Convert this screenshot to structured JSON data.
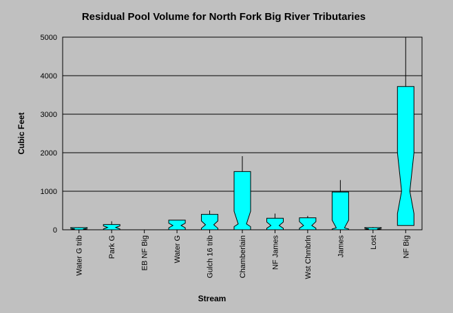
{
  "chart_data": {
    "type": "box",
    "title": "Residual Pool Volume for North Fork Big River Tributaries",
    "xlabel": "Stream",
    "ylabel": "Cubic Feet",
    "ylim": [
      0,
      5000
    ],
    "yticks": [
      0,
      1000,
      2000,
      3000,
      4000,
      5000
    ],
    "grid": true,
    "fill_color": "#00ffff",
    "categories": [
      "Water G trib",
      "Park G",
      "EB NF Big",
      "Water G",
      "Gulch 16 trib",
      "Chamberlain",
      "NF James",
      "Wst Chmbrln",
      "James",
      "Lost",
      "NF Big"
    ],
    "boxes": [
      {
        "q1": 0,
        "median": 20,
        "q3": 55,
        "whisker_high": 65,
        "notch_low": 5,
        "notch_high": 35
      },
      {
        "q1": 0,
        "median": 60,
        "q3": 135,
        "whisker_high": 220,
        "notch_low": 20,
        "notch_high": 100
      },
      null,
      {
        "q1": 0,
        "median": 110,
        "q3": 250,
        "whisker_high": 250,
        "notch_low": 50,
        "notch_high": 170
      },
      {
        "q1": 0,
        "median": 130,
        "q3": 400,
        "whisker_high": 500,
        "notch_low": 40,
        "notch_high": 230
      },
      {
        "q1": 0,
        "median": 150,
        "q3": 1510,
        "whisker_high": 1910,
        "notch_low": 80,
        "notch_high": 480
      },
      {
        "q1": 0,
        "median": 110,
        "q3": 300,
        "whisker_high": 420,
        "notch_low": 40,
        "notch_high": 200
      },
      {
        "q1": 0,
        "median": 110,
        "q3": 310,
        "whisker_high": 360,
        "notch_low": 40,
        "notch_high": 210
      },
      {
        "q1": 0,
        "median": 50,
        "q3": 980,
        "whisker_high": 1290,
        "notch_low": 20,
        "notch_high": 250
      },
      {
        "q1": 0,
        "median": 20,
        "q3": 55,
        "whisker_high": 70,
        "notch_low": 5,
        "notch_high": 40
      },
      {
        "q1": 110,
        "median": 1000,
        "q3": 3720,
        "whisker_high": 5000,
        "notch_low": 420,
        "notch_high": 2000
      }
    ]
  }
}
